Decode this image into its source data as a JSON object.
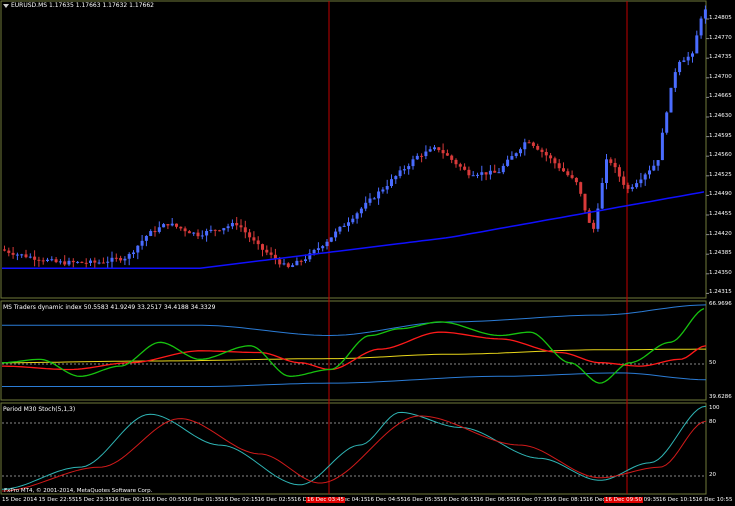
{
  "chart": {
    "symbol": "EURUSD.MS",
    "ohlc": "1.17635 1.17663 1.17632 1.17662",
    "price_axis": [
      "1.24805",
      "1.24770",
      "1.24735",
      "1.24700",
      "1.24665",
      "1.24630",
      "1.24595",
      "1.24560",
      "1.24525",
      "1.24490",
      "1.24455",
      "1.24420",
      "1.24385",
      "1.24350",
      "1.24315"
    ]
  },
  "indicator1": {
    "title": "MS Traders dynamic index 50.5583 41.9249 33.2517 34.4188 34.3329",
    "axis": [
      "66.9696",
      "50",
      "39.6286"
    ]
  },
  "indicator2": {
    "title": "Period M30 Stoch(5,1,3)",
    "axis": [
      "100",
      "80",
      "20"
    ]
  },
  "footer": {
    "copyright": "FxPro MT4, © 2001-2014, MetaQuotes Software Corp.",
    "time_axis": [
      "15 Dec 2014",
      "15 Dec 22:55",
      "15 Dec 23:35",
      "16 Dec 00:15",
      "16 Dec 00:55",
      "16 Dec 01:35",
      "16 Dec 02:15",
      "16 Dec 02:55",
      "16 Dec 03:35",
      "16 Dec 04:15",
      "16 Dec 04:55",
      "16 Dec 05:35",
      "16 Dec 06:15",
      "16 Dec 06:55",
      "16 Dec 07:35",
      "16 Dec 08:15",
      "16 Dec 08:55",
      "16 Dec 09:35",
      "16 Dec 10:15",
      "16 Dec 10:55"
    ],
    "highlight1": "16 Dec 03:45",
    "highlight2": "16 Dec 09:50"
  },
  "colors": {
    "bull": "#4a6cff",
    "bear": "#d83a3a",
    "ma": "#1010ff",
    "grid_border": "#6f7a3a",
    "vline": "#c00000",
    "tdi_green": "#17c20f",
    "tdi_red": "#ff1a1a",
    "tdi_yellow": "#e8d61a",
    "tdi_bands": "#2b7cd6",
    "stoch_main": "#2fb5b5",
    "stoch_signal": "#d01a1a"
  }
}
